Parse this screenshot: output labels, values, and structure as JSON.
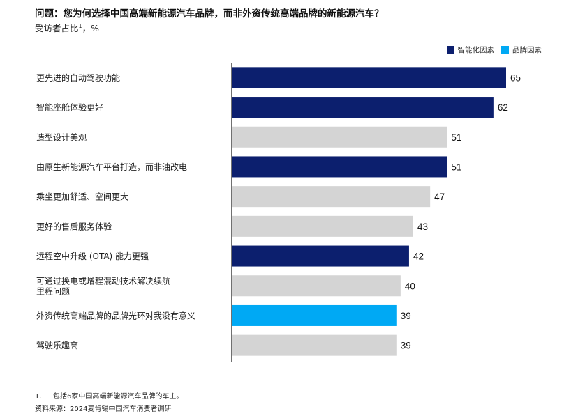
{
  "header": {
    "title": "问题：您为何选择中国高端新能源汽车品牌，而非外资传统高端品牌的新能源汽车？",
    "subtitle": "受访者占比",
    "subtitle_sup": "1",
    "subtitle_unit": "，%"
  },
  "legend": [
    {
      "label": "智能化因素",
      "color": "#0c1f6e"
    },
    {
      "label": "品牌因素",
      "color": "#00a9f4"
    }
  ],
  "chart_data": {
    "type": "bar",
    "orientation": "horizontal",
    "title": "问题：您为何选择中国高端新能源汽车品牌，而非外资传统高端品牌的新能源汽车？",
    "ylabel": "受访者占比1，%",
    "xlim": [
      0,
      70
    ],
    "grid": false,
    "legend_position": "top-right",
    "categories": [
      [
        "更先进的自动驾驶功能"
      ],
      [
        "智能座舱体验更好"
      ],
      [
        "造型设计美观"
      ],
      [
        "由原生新能源汽车平台打造，而非油改电"
      ],
      [
        "乘坐更加舒适、空间更大"
      ],
      [
        "更好的售后服务体验"
      ],
      [
        "远程空中升级 (OTA) 能力更强"
      ],
      [
        "可通过换电或增程混动技术解决续航",
        "里程问题"
      ],
      [
        "外资传统高端品牌的品牌光环对我没有意义"
      ],
      [
        "驾驶乐趣高"
      ]
    ],
    "values": [
      65,
      62,
      51,
      51,
      47,
      43,
      42,
      40,
      39,
      39
    ],
    "factor": [
      "智能化因素",
      "智能化因素",
      "其他",
      "智能化因素",
      "其他",
      "其他",
      "智能化因素",
      "其他",
      "品牌因素",
      "其他"
    ],
    "colors": {
      "智能化因素": "#0c1f6e",
      "品牌因素": "#00a9f4",
      "其他": "#d4d4d4"
    }
  },
  "footnotes": [
    {
      "num": "1.",
      "text": "包括6家中国高端新能源汽车品牌的车主。"
    },
    {
      "num": "",
      "text": "资料来源：2024麦肯锡中国汽车消费者调研"
    }
  ]
}
